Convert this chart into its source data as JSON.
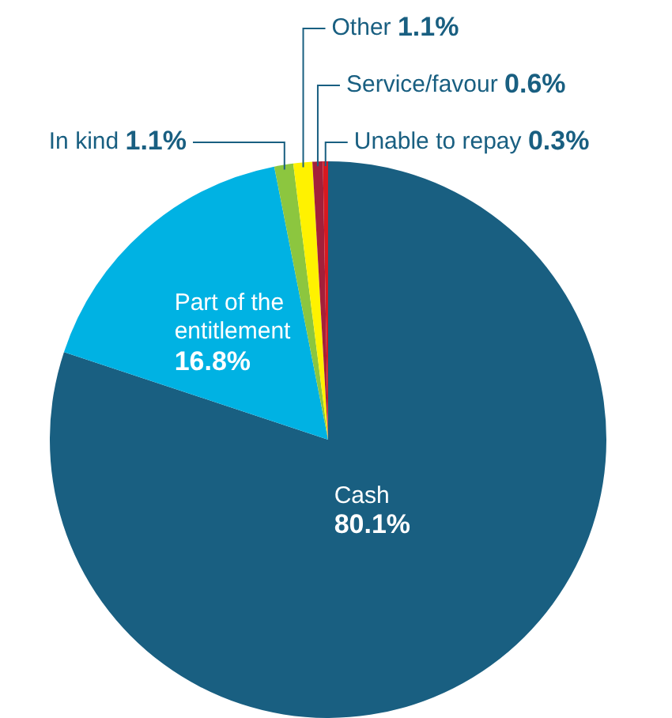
{
  "chart_data": {
    "type": "pie",
    "categories": [
      "Cash",
      "Part of the entitlement",
      "In kind",
      "Other",
      "Service/favour",
      "Unable to repay"
    ],
    "values": [
      80.1,
      16.8,
      1.1,
      1.1,
      0.6,
      0.3
    ],
    "colors": [
      "#195f81",
      "#00b2e3",
      "#8cc63f",
      "#fff200",
      "#a3203a",
      "#d71920"
    ],
    "value_labels": [
      "80.1%",
      "16.8%",
      "1.1%",
      "1.1%",
      "0.6%",
      "0.3%"
    ],
    "legend": false
  }
}
